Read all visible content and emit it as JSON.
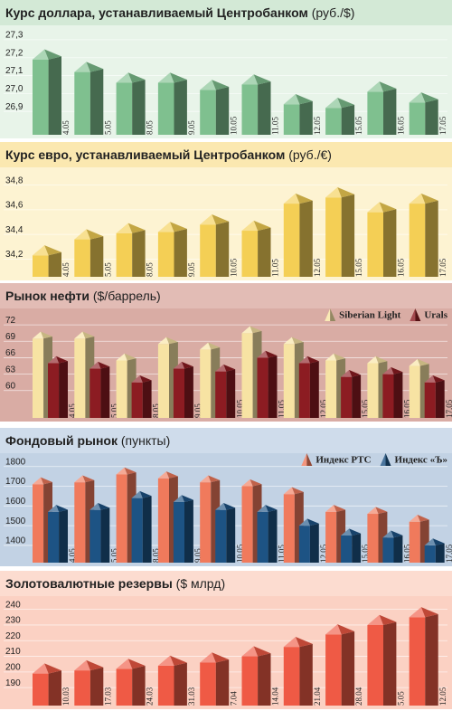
{
  "chart_data": [
    {
      "type": "bar",
      "title": "Курс доллара, устанавливаемый Центробанком",
      "unit": "(руб./$)",
      "categories": [
        "4.05",
        "5.05",
        "8.05",
        "9.05",
        "10.05",
        "11.05",
        "12.05",
        "15.05",
        "16.05",
        "17.05"
      ],
      "series": [
        {
          "color": "#7fc08f",
          "values": [
            27.19,
            27.12,
            27.06,
            27.06,
            27.02,
            27.05,
            26.94,
            26.92,
            27.01,
            26.95
          ]
        }
      ],
      "ylim": [
        26.8,
        27.35
      ],
      "yticks": [
        {
          "value": 26.9,
          "label": "26,9"
        },
        {
          "value": 27.0,
          "label": "27,0"
        },
        {
          "value": 27.1,
          "label": "27,1"
        },
        {
          "value": 27.2,
          "label": "27,2"
        },
        {
          "value": 27.3,
          "label": "27,3"
        }
      ]
    },
    {
      "type": "bar",
      "title": "Курс евро, устанавливаемый Центробанком",
      "unit": "(руб./€)",
      "categories": [
        "4.05",
        "5.05",
        "8.05",
        "9.05",
        "10.05",
        "11.05",
        "12.05",
        "15.05",
        "16.05",
        "17.05"
      ],
      "series": [
        {
          "color": "#f4cf55",
          "values": [
            34.23,
            34.36,
            34.41,
            34.42,
            34.48,
            34.43,
            34.65,
            34.7,
            34.58,
            34.65
          ]
        }
      ],
      "ylim": [
        34.1,
        34.9
      ],
      "yticks": [
        {
          "value": 34.2,
          "label": "34,2"
        },
        {
          "value": 34.4,
          "label": "34,4"
        },
        {
          "value": 34.6,
          "label": "34,6"
        },
        {
          "value": 34.8,
          "label": "34,8"
        }
      ]
    },
    {
      "type": "bar",
      "title": "Рынок нефти",
      "unit": "($/баррель)",
      "categories": [
        "4.05",
        "5.05",
        "8.05",
        "9.05",
        "10.05",
        "11.05",
        "12.05",
        "15.05",
        "16.05",
        "17.05"
      ],
      "series": [
        {
          "name": "Siberian Light",
          "color": "#f7e3a3",
          "values": [
            69.5,
            69.5,
            65.5,
            68.5,
            67.5,
            70.5,
            68.5,
            65.5,
            65,
            64.5
          ]
        },
        {
          "name": "Urals",
          "color": "#8c1c22",
          "values": [
            65,
            64,
            61.5,
            64,
            63.5,
            66,
            65,
            62.5,
            63,
            61.5
          ]
        }
      ],
      "ylim": [
        56,
        74
      ],
      "yticks": [
        60,
        63,
        66,
        69,
        72
      ],
      "legend": "top-right"
    },
    {
      "type": "bar",
      "title": "Фондовый рынок",
      "unit": "(пункты)",
      "categories": [
        "4.05",
        "5.05",
        "8.05",
        "9.05",
        "10.05",
        "11.05",
        "12.05",
        "15.05",
        "16.05",
        "17.05"
      ],
      "series": [
        {
          "name": "Индекс РТС",
          "color": "#f07a5c",
          "values": [
            1710,
            1720,
            1760,
            1740,
            1720,
            1700,
            1660,
            1570,
            1560,
            1520
          ]
        },
        {
          "name": "Индекс «Ъ»",
          "color": "#1d5384",
          "values": [
            1570,
            1580,
            1640,
            1620,
            1580,
            1570,
            1500,
            1450,
            1440,
            1400
          ]
        }
      ],
      "ylim": [
        1340,
        1840
      ],
      "yticks": [
        1400,
        1500,
        1600,
        1700,
        1800
      ],
      "legend": "top-right"
    },
    {
      "type": "bar",
      "title": "Золотовалютные резервы",
      "unit": "($ млрд)",
      "categories": [
        "10.03",
        "17.03",
        "24.03",
        "31.03",
        "7.04",
        "14.04",
        "21.04",
        "28.04",
        "5.05",
        "12.05"
      ],
      "series": [
        {
          "color": "#ef5a45",
          "values": [
            199,
            201,
            202,
            204,
            206,
            210,
            216,
            224,
            230,
            235
          ]
        }
      ],
      "ylim": [
        182,
        245
      ],
      "yticks": [
        190,
        200,
        210,
        220,
        230,
        240
      ]
    }
  ]
}
